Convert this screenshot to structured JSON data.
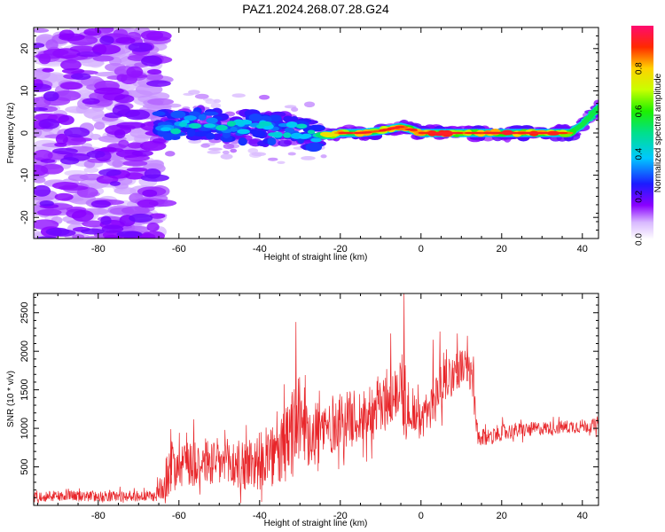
{
  "title": "PAZ1.2024.268.07.28.G24",
  "chart_data": [
    {
      "type": "heatmap",
      "title": "PAZ1.2024.268.07.28.G24",
      "xlabel": "Height of straight line (km)",
      "ylabel": "Frequency (Hz)",
      "xlim": [
        -96,
        44
      ],
      "ylim": [
        -25,
        25
      ],
      "x_ticks": [
        -80,
        -60,
        -40,
        -20,
        0,
        20,
        40
      ],
      "y_ticks": [
        -20,
        -10,
        0,
        10,
        20
      ],
      "x_tick_labels": [
        "-80",
        "-60",
        "-40",
        "-20",
        "0",
        "20",
        "40"
      ],
      "y_tick_labels": [
        "-20",
        "-10",
        "0",
        "10",
        "20"
      ],
      "colorbar": {
        "label": "Normalized spectral amplitude",
        "range": [
          0,
          1
        ],
        "ticks": [
          0.0,
          0.2,
          0.4,
          0.6,
          0.8
        ],
        "tick_labels": [
          "0.0",
          "0.2",
          "0.4",
          "0.6",
          "0.8"
        ],
        "colormap": "rainbow (white-violet-blue-cyan-green-yellow-red-magenta)"
      },
      "ridge": {
        "description": "dominant frequency track",
        "x": [
          -65,
          -60,
          -55,
          -50,
          -45,
          -40,
          -35,
          -30,
          -25,
          -22,
          -20,
          -18,
          -15,
          -10,
          -5,
          -3,
          0,
          5,
          10,
          15,
          20,
          25,
          30,
          35,
          37,
          40,
          42,
          44
        ],
        "y": [
          2,
          1.5,
          2.5,
          2,
          1.5,
          1,
          1,
          0.5,
          -0.5,
          -0.5,
          0,
          0,
          0,
          0.5,
          1.5,
          1,
          0,
          0,
          0,
          0,
          0,
          0,
          0,
          0,
          0,
          2,
          4,
          6
        ]
      },
      "grid": false
    },
    {
      "type": "line",
      "xlabel": "Height of straight line (km)",
      "ylabel": "SNR (10 * v/v)",
      "xlim": [
        -96,
        44
      ],
      "ylim": [
        0,
        2750
      ],
      "x_ticks": [
        -80,
        -60,
        -40,
        -20,
        0,
        20,
        40
      ],
      "y_ticks": [
        500,
        1000,
        1500,
        2000,
        2500
      ],
      "x_tick_labels": [
        "-80",
        "-60",
        "-40",
        "-20",
        "0",
        "20",
        "40"
      ],
      "y_tick_labels": [
        "500",
        "1000",
        "1500",
        "2000",
        "2500"
      ],
      "series": [
        {
          "color": "#e8262a",
          "envelope": {
            "x": [
              -96,
              -66,
              -64,
              -62,
              -60,
              -55,
              -50,
              -45,
              -40,
              -35,
              -32,
              -30,
              -27,
              -25,
              -20,
              -15,
              -10,
              -7,
              -5,
              -4,
              -3,
              -2,
              0,
              3,
              5,
              8,
              10,
              12,
              13,
              14,
              20,
              30,
              40,
              44
            ],
            "mean": [
              120,
              120,
              250,
              500,
              620,
              580,
              540,
              520,
              580,
              650,
              900,
              1150,
              950,
              950,
              1100,
              1150,
              1300,
              1350,
              1600,
              1400,
              1200,
              1250,
              1100,
              1300,
              1650,
              1700,
              1800,
              1750,
              1550,
              850,
              950,
              1000,
              1030,
              1040
            ],
            "amplitude": [
              70,
              70,
              200,
              360,
              400,
              330,
              330,
              350,
              380,
              420,
              650,
              520,
              500,
              450,
              350,
              380,
              400,
              300,
              400,
              700,
              200,
              300,
              250,
              300,
              450,
              250,
              250,
              250,
              400,
              120,
              110,
              90,
              90,
              90
            ]
          }
        }
      ],
      "grid": false
    }
  ]
}
